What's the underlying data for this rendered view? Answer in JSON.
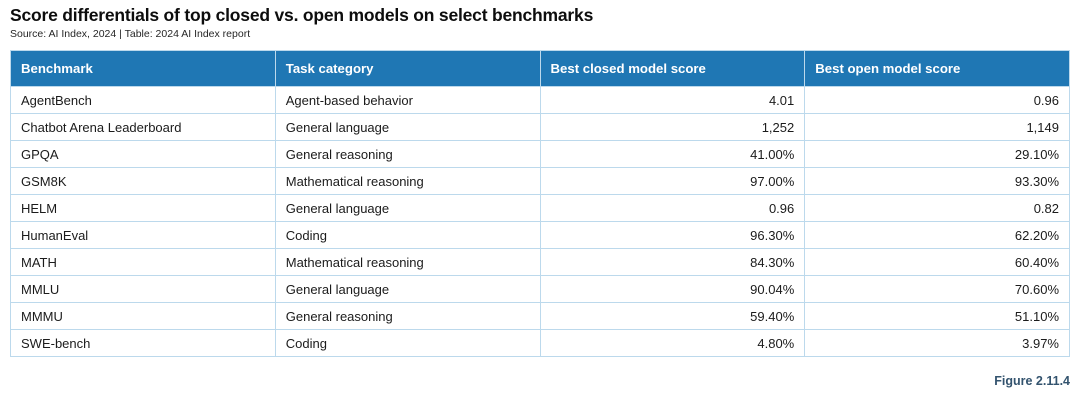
{
  "page": {
    "title": "Score differentials of top closed vs. open models on select benchmarks",
    "source": "Source: AI Index, 2024 | Table: 2024 AI Index report",
    "figure_label": "Figure 2.11.4"
  },
  "colors": {
    "header_bg": "#1f77b4",
    "header_text": "#ffffff",
    "cell_border": "#bcd9ec",
    "body_text": "#1b1b1b",
    "figure_label_color": "#33536e"
  },
  "chart_data": {
    "type": "table",
    "title": "Score differentials of top closed vs. open models on select benchmarks",
    "source": "Source: AI Index, 2024 | Table: 2024 AI Index report",
    "figure": "Figure 2.11.4",
    "columns": [
      "Benchmark",
      "Task category",
      "Best closed model score",
      "Best open model score"
    ],
    "rows": [
      [
        "AgentBench",
        "Agent-based behavior",
        "4.01",
        "0.96"
      ],
      [
        "Chatbot Arena Leaderboard",
        "General language",
        "1,252",
        "1,149"
      ],
      [
        "GPQA",
        "General reasoning",
        "41.00%",
        "29.10%"
      ],
      [
        "GSM8K",
        "Mathematical reasoning",
        "97.00%",
        "93.30%"
      ],
      [
        "HELM",
        "General language",
        "0.96",
        "0.82"
      ],
      [
        "HumanEval",
        "Coding",
        "96.30%",
        "62.20%"
      ],
      [
        "MATH",
        "Mathematical reasoning",
        "84.30%",
        "60.40%"
      ],
      [
        "MMLU",
        "General language",
        "90.04%",
        "70.60%"
      ],
      [
        "MMMU",
        "General reasoning",
        "59.40%",
        "51.10%"
      ],
      [
        "SWE-bench",
        "Coding",
        "4.80%",
        "3.97%"
      ]
    ]
  }
}
